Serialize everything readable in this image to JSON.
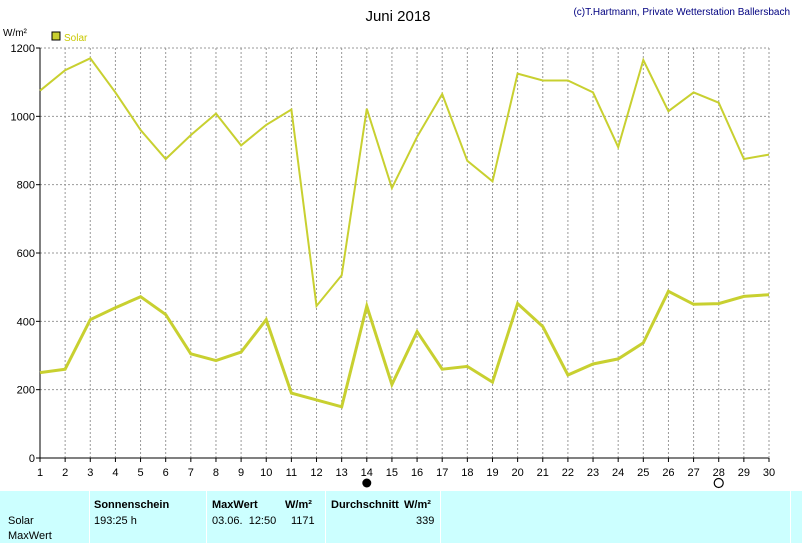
{
  "header": {
    "title": "Juni 2018",
    "copyright": "(c)T.Hartmann, Private Wetterstation Ballersbach"
  },
  "chart_data": {
    "type": "line",
    "ylabel": "W/m²",
    "legend": {
      "label": "Solar",
      "color": "#c8d030",
      "position": "top-left"
    },
    "categories": [
      "1",
      "2",
      "3",
      "4",
      "5",
      "6",
      "7",
      "8",
      "9",
      "10",
      "11",
      "12",
      "13",
      "14",
      "15",
      "16",
      "17",
      "18",
      "19",
      "20",
      "21",
      "22",
      "23",
      "24",
      "25",
      "26",
      "27",
      "28",
      "29",
      "30"
    ],
    "ylim": [
      0,
      1200
    ],
    "yticks": [
      "0",
      "200",
      "400",
      "600",
      "800",
      "1000",
      "1200"
    ],
    "grid": true,
    "series": [
      {
        "name": "",
        "values": [
          1075,
          1135,
          1170,
          1070,
          960,
          875,
          945,
          1008,
          915,
          975,
          1020,
          445,
          535,
          1022,
          790,
          940,
          1065,
          870,
          810,
          1125,
          1105,
          1105,
          1070,
          910,
          1165,
          1015,
          1070,
          1040,
          875,
          888
        ],
        "color": "#c8d030"
      },
      {
        "name": "",
        "values": [
          250,
          260,
          405,
          440,
          472,
          420,
          305,
          285,
          310,
          405,
          190,
          170,
          150,
          445,
          215,
          370,
          260,
          268,
          222,
          452,
          385,
          243,
          275,
          290,
          337,
          488,
          450,
          452,
          473,
          478
        ],
        "color": "#c8d030"
      }
    ],
    "markers": [
      {
        "day": 14,
        "kind": "filled-circle"
      },
      {
        "day": 28,
        "kind": "open-circle"
      }
    ]
  },
  "stats": {
    "row_labels": [
      "Solar",
      "MaxWert"
    ],
    "sunshine": {
      "header": "Sonnenschein",
      "value": "193:25 h"
    },
    "max": {
      "header": "MaxWert",
      "unit_header": "W/m²",
      "datetime": "03.06.  12:50",
      "value": "1171"
    },
    "avg": {
      "header": "Durchschnitt",
      "unit_header": "W/m²",
      "value": "339"
    }
  }
}
